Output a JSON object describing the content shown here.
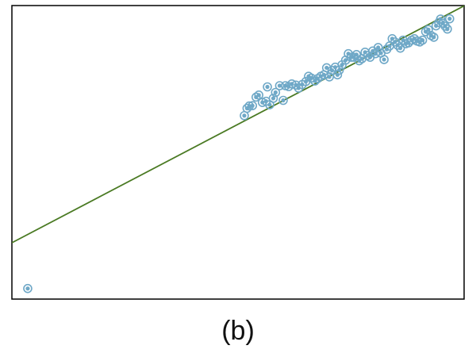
{
  "caption": "(b)",
  "chart_data": {
    "type": "scatter",
    "title": "",
    "xlabel": "",
    "ylabel": "",
    "xlim": [
      0,
      100
    ],
    "ylim": [
      0,
      100
    ],
    "grid": false,
    "axes_ticks": false,
    "colors": {
      "points": "#6fa8c7",
      "line": "#4a7a23",
      "frame": "#000000"
    },
    "regression_line": {
      "intercept": 19.2,
      "slope": 0.807
    },
    "points": [
      [
        3.5,
        3.6
      ],
      [
        51.4,
        62.5
      ],
      [
        52.0,
        65.0
      ],
      [
        52.5,
        65.8
      ],
      [
        53.2,
        65.9
      ],
      [
        54.0,
        68.8
      ],
      [
        54.6,
        69.5
      ],
      [
        55.4,
        67.0
      ],
      [
        56.2,
        67.4
      ],
      [
        56.5,
        72.3
      ],
      [
        57.0,
        66.2
      ],
      [
        57.8,
        68.4
      ],
      [
        58.3,
        70.4
      ],
      [
        59.2,
        72.7
      ],
      [
        60.0,
        67.7
      ],
      [
        60.5,
        72.7
      ],
      [
        61.2,
        72.4
      ],
      [
        61.9,
        73.3
      ],
      [
        62.8,
        72.9
      ],
      [
        63.4,
        71.9
      ],
      [
        64.2,
        73.1
      ],
      [
        65.0,
        74.1
      ],
      [
        65.6,
        75.9
      ],
      [
        66.2,
        75.3
      ],
      [
        67.0,
        74.3
      ],
      [
        67.6,
        75.1
      ],
      [
        68.3,
        75.9
      ],
      [
        69.0,
        76.4
      ],
      [
        69.6,
        78.8
      ],
      [
        70.2,
        75.7
      ],
      [
        70.8,
        77.9
      ],
      [
        71.5,
        79.0
      ],
      [
        72.0,
        76.4
      ],
      [
        72.4,
        78.0
      ],
      [
        73.0,
        79.8
      ],
      [
        73.8,
        81.4
      ],
      [
        74.4,
        83.6
      ],
      [
        75.0,
        82.4
      ],
      [
        75.6,
        82.4
      ],
      [
        76.2,
        83.3
      ],
      [
        76.8,
        81.2
      ],
      [
        77.4,
        81.9
      ],
      [
        78.1,
        84.1
      ],
      [
        78.7,
        83.0
      ],
      [
        79.2,
        82.4
      ],
      [
        79.8,
        84.5
      ],
      [
        80.4,
        83.6
      ],
      [
        81.0,
        85.7
      ],
      [
        81.6,
        83.8
      ],
      [
        82.3,
        81.6
      ],
      [
        82.9,
        85.1
      ],
      [
        83.5,
        86.2
      ],
      [
        84.1,
        88.7
      ],
      [
        84.7,
        87.6
      ],
      [
        85.3,
        86.5
      ],
      [
        85.9,
        85.5
      ],
      [
        86.5,
        88.2
      ],
      [
        87.1,
        87.0
      ],
      [
        87.7,
        87.3
      ],
      [
        88.4,
        88.2
      ],
      [
        89.0,
        88.7
      ],
      [
        89.6,
        87.9
      ],
      [
        90.2,
        87.6
      ],
      [
        90.8,
        88.2
      ],
      [
        91.5,
        91.1
      ],
      [
        92.1,
        91.8
      ],
      [
        92.7,
        89.8
      ],
      [
        93.3,
        89.2
      ],
      [
        93.8,
        93.1
      ],
      [
        94.4,
        94.2
      ],
      [
        94.8,
        95.4
      ],
      [
        95.3,
        94.0
      ],
      [
        95.8,
        93.0
      ],
      [
        96.3,
        92.0
      ],
      [
        96.8,
        95.5
      ]
    ]
  }
}
